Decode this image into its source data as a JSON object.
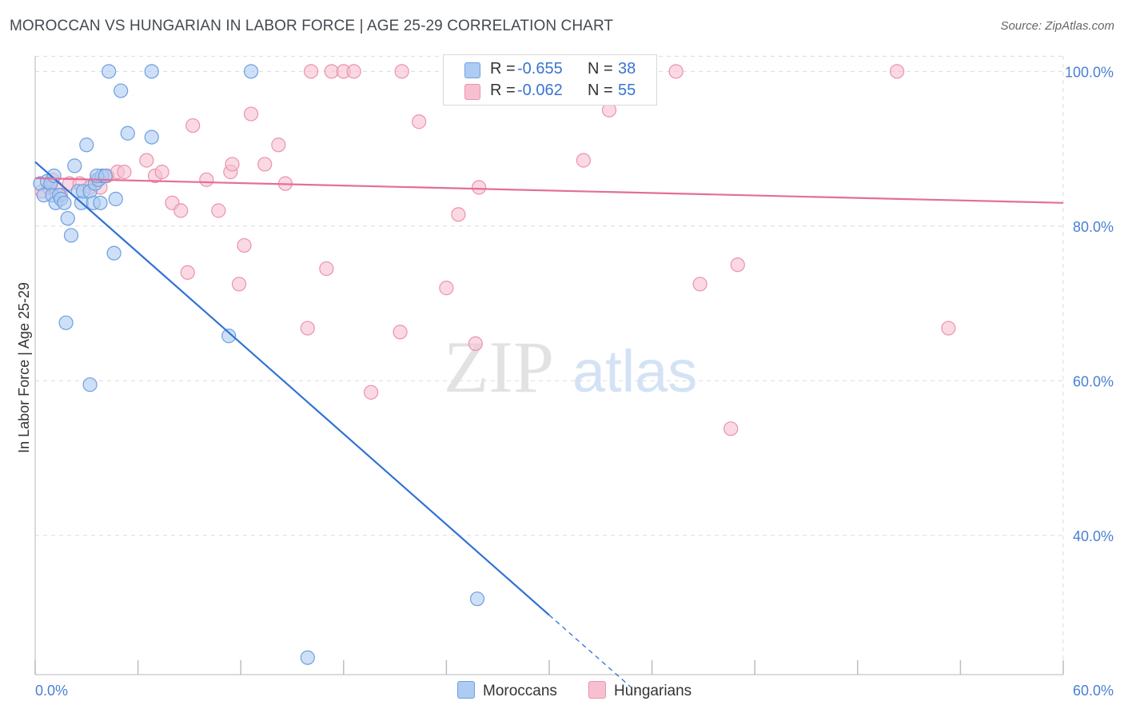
{
  "title": "MOROCCAN VS HUNGARIAN IN LABOR FORCE | AGE 25-29 CORRELATION CHART",
  "source": "Source: ZipAtlas.com",
  "watermark": {
    "zip": "ZIP",
    "atlas": "atlas"
  },
  "colors": {
    "moroccan_fill": "#aecbf2",
    "moroccan_stroke": "#6f9fe0",
    "moroccan_line": "#2f72d6",
    "hungarian_fill": "#f7c0d1",
    "hungarian_stroke": "#eb92ae",
    "hungarian_line": "#e46e98",
    "tick_label": "#4a7fd4",
    "grid": "#dcdcdc"
  },
  "legend": {
    "rows": [
      {
        "r_label": "R =",
        "r_value": "-0.655",
        "n_label": "N =",
        "n_value": "38"
      },
      {
        "r_label": "R =",
        "r_value": "-0.062",
        "n_label": "N =",
        "n_value": "55"
      }
    ]
  },
  "bottom_legend": {
    "moroccans": "Moroccans",
    "hungarians": "Hungarians"
  },
  "chart_data": {
    "type": "scatter",
    "title": "MOROCCAN VS HUNGARIAN IN LABOR FORCE | AGE 25-29 CORRELATION CHART",
    "xlabel": "",
    "ylabel": "In Labor Force | Age 25-29",
    "xlim": [
      0,
      60
    ],
    "ylim": [
      22,
      102
    ],
    "x_tick_labels": [
      "0.0%",
      "60.0%"
    ],
    "y_ticks": [
      40,
      60,
      80,
      100
    ],
    "y_tick_labels": [
      "40.0%",
      "60.0%",
      "80.0%",
      "100.0%"
    ],
    "grid": true,
    "legend_position": "top-center",
    "series": [
      {
        "name": "Moroccans",
        "r": -0.655,
        "n": 38,
        "trend": {
          "x0": 0,
          "y0": 88.3,
          "x1": 30,
          "y1": 29.7,
          "x_dash_end": 35.1
        },
        "points": [
          [
            0.3,
            85.5
          ],
          [
            0.5,
            84.0
          ],
          [
            0.7,
            85.8
          ],
          [
            0.9,
            85.5
          ],
          [
            1.0,
            84.0
          ],
          [
            1.1,
            86.5
          ],
          [
            1.2,
            83.0
          ],
          [
            1.4,
            84.0
          ],
          [
            1.5,
            83.5
          ],
          [
            1.7,
            83.0
          ],
          [
            1.9,
            81.0
          ],
          [
            2.1,
            78.8
          ],
          [
            2.3,
            87.8
          ],
          [
            2.5,
            84.5
          ],
          [
            2.7,
            83.0
          ],
          [
            2.8,
            84.5
          ],
          [
            3.0,
            90.5
          ],
          [
            3.2,
            84.5
          ],
          [
            3.4,
            83.0
          ],
          [
            3.5,
            85.5
          ],
          [
            3.7,
            86.0
          ],
          [
            3.8,
            83.0
          ],
          [
            3.9,
            86.5
          ],
          [
            3.6,
            86.5
          ],
          [
            4.1,
            86.5
          ],
          [
            4.7,
            83.5
          ],
          [
            4.6,
            76.5
          ],
          [
            5.0,
            97.5
          ],
          [
            4.3,
            100.0
          ],
          [
            5.4,
            92.0
          ],
          [
            6.8,
            91.5
          ],
          [
            6.8,
            100.0
          ],
          [
            12.6,
            100.0
          ],
          [
            11.3,
            65.8
          ],
          [
            1.8,
            67.5
          ],
          [
            3.2,
            59.5
          ],
          [
            25.8,
            31.8
          ],
          [
            15.9,
            24.2
          ]
        ]
      },
      {
        "name": "Hungarians",
        "r": -0.062,
        "n": 55,
        "trend": {
          "x0": 0,
          "y0": 86.2,
          "x1": 60,
          "y1": 83.0
        },
        "points": [
          [
            0.4,
            84.5
          ],
          [
            0.8,
            85.0
          ],
          [
            1.0,
            86.0
          ],
          [
            1.2,
            85.0
          ],
          [
            1.5,
            84.0
          ],
          [
            2.0,
            85.5
          ],
          [
            2.6,
            85.5
          ],
          [
            3.2,
            85.0
          ],
          [
            3.6,
            86.0
          ],
          [
            3.8,
            85.0
          ],
          [
            4.2,
            86.5
          ],
          [
            4.8,
            87.0
          ],
          [
            5.2,
            87.0
          ],
          [
            6.5,
            88.5
          ],
          [
            7.0,
            86.5
          ],
          [
            7.4,
            87.0
          ],
          [
            8.0,
            83.0
          ],
          [
            8.5,
            82.0
          ],
          [
            8.9,
            74.0
          ],
          [
            9.2,
            93.0
          ],
          [
            10.0,
            86.0
          ],
          [
            10.7,
            82.0
          ],
          [
            11.4,
            87.0
          ],
          [
            11.5,
            88.0
          ],
          [
            11.9,
            72.5
          ],
          [
            12.2,
            77.5
          ],
          [
            12.6,
            94.5
          ],
          [
            13.4,
            88.0
          ],
          [
            14.2,
            90.5
          ],
          [
            14.6,
            85.5
          ],
          [
            15.9,
            66.8
          ],
          [
            16.1,
            100.0
          ],
          [
            17.0,
            74.5
          ],
          [
            17.3,
            100.0
          ],
          [
            18.0,
            100.0
          ],
          [
            18.6,
            100.0
          ],
          [
            19.6,
            58.5
          ],
          [
            21.3,
            66.3
          ],
          [
            21.4,
            100.0
          ],
          [
            22.4,
            93.5
          ],
          [
            24.0,
            72.0
          ],
          [
            24.7,
            81.5
          ],
          [
            25.7,
            64.8
          ],
          [
            25.9,
            85.0
          ],
          [
            29.0,
            100.0
          ],
          [
            32.0,
            88.5
          ],
          [
            33.5,
            95.0
          ],
          [
            37.4,
            100.0
          ],
          [
            38.8,
            72.5
          ],
          [
            40.6,
            53.8
          ],
          [
            41.0,
            75.0
          ],
          [
            50.3,
            100.0
          ],
          [
            53.3,
            66.8
          ],
          [
            31.0,
            100.0
          ],
          [
            31.5,
            99.3
          ]
        ]
      }
    ]
  }
}
